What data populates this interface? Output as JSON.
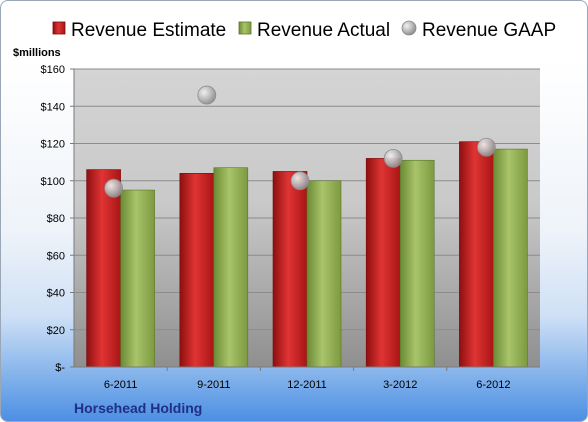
{
  "chart_data": {
    "type": "bar",
    "company": "Horsehead Holding",
    "unit_label": "$millions",
    "categories": [
      "6-2011",
      "9-2011",
      "12-2011",
      "3-2012",
      "6-2012"
    ],
    "series": [
      {
        "name": "Revenue Estimate",
        "kind": "bar",
        "color": "#cc1f1f",
        "values": [
          106,
          104,
          105,
          112,
          121
        ]
      },
      {
        "name": "Revenue Actual",
        "kind": "bar",
        "color": "#8fae4e",
        "values": [
          95,
          107,
          100,
          111,
          117
        ]
      },
      {
        "name": "Revenue GAAP",
        "kind": "marker",
        "color": "#a8a8a8",
        "values": [
          96,
          146,
          100,
          112,
          118
        ]
      }
    ],
    "ylim": [
      0,
      160
    ],
    "yticks": [
      0,
      20,
      40,
      60,
      80,
      100,
      120,
      140,
      160
    ],
    "ytick_labels": [
      "$-",
      "$20",
      "$40",
      "$60",
      "$80",
      "$100",
      "$120",
      "$140",
      "$160"
    ],
    "grid": true,
    "legend_position": "top"
  }
}
